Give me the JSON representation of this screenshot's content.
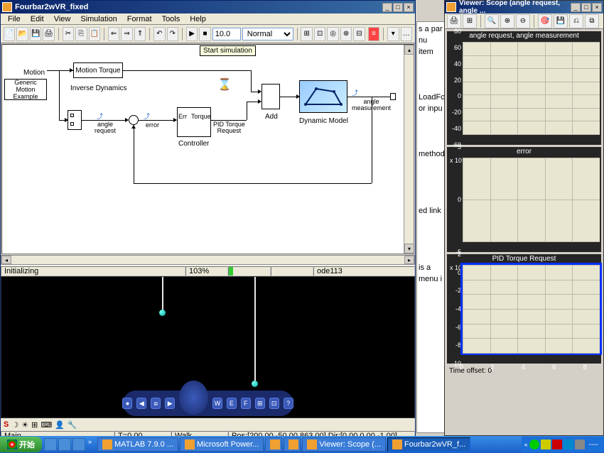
{
  "simulink": {
    "title": "Fourbar2wVR_fixed",
    "menu": [
      "File",
      "Edit",
      "View",
      "Simulation",
      "Format",
      "Tools",
      "Help"
    ],
    "simtime": "10.0",
    "mode": "Normal",
    "tooltip": "Start simulation",
    "blocks": {
      "genmotion": "Generic Motion\nExample",
      "motion": "Motion",
      "motiontorque": "Motion   Torque",
      "invdyn": "Inverse Dynamics",
      "err": "Err",
      "torque": "Torque",
      "pid": "PID Torque\nRequest",
      "controller": "Controller",
      "add": "Add",
      "dynmodel": "Dynamic Model",
      "anglemeas": "angle\nmeasurement",
      "anglereq": "angle\nrequest",
      "error": "error"
    },
    "status": {
      "left": "Initializing",
      "pct": "103%",
      "solver": "ode113"
    }
  },
  "viewer3d": {
    "status": {
      "main": "Main",
      "t": "T=0.00",
      "mode": "Walk",
      "pos": "Pos:[200.00 -50.00 863.00] Dir:[0.00 0.00 -1.00]"
    },
    "navlabels": [
      "W",
      "E",
      "F"
    ]
  },
  "scope": {
    "title": "Viewer: Scope (angle request, angle ...",
    "plots": [
      {
        "title": "angle request, angle  measurement",
        "ylim": [
          -60,
          80
        ],
        "ystep": 20,
        "height": 160,
        "exp": ""
      },
      {
        "title": "error",
        "ylim": [
          -5,
          5
        ],
        "ystep": 5,
        "height": 148,
        "exp": "x 10⁻³"
      },
      {
        "title": "PID Torque Request",
        "ylim": [
          -10,
          2
        ],
        "ystep": 2,
        "height": 154,
        "exp": "x 10⁻³",
        "selected": true
      }
    ],
    "xticks": [
      0,
      2,
      4,
      6,
      8
    ],
    "timeoffset": "Time offset:   0",
    "colors": {
      "plotbg": "#e8e6d0",
      "surround": "#252525",
      "grid": "#bbb9a8",
      "select": "#0030ff"
    }
  },
  "cmdfrag": [
    "",
    "s a par",
    "nu item",
    "",
    "",
    "LoadFcn",
    "or inpu",
    "",
    "",
    "",
    "method",
    "",
    "",
    "",
    "",
    "ed link",
    "",
    "",
    "",
    "",
    "",
    " is a",
    "menu i"
  ],
  "taskbar": {
    "start": "开始",
    "tasks": [
      {
        "label": "MATLAB 7.9.0 ...",
        "active": false
      },
      {
        "label": "Microsoft Power...",
        "active": false
      },
      {
        "label": "",
        "active": false,
        "narrow": true
      },
      {
        "label": "",
        "active": false,
        "narrow": true
      },
      {
        "label": "Viewer: Scope (...",
        "active": false
      },
      {
        "label": "Fourbar2wVR_f...",
        "active": true
      }
    ],
    "clock": "----"
  }
}
